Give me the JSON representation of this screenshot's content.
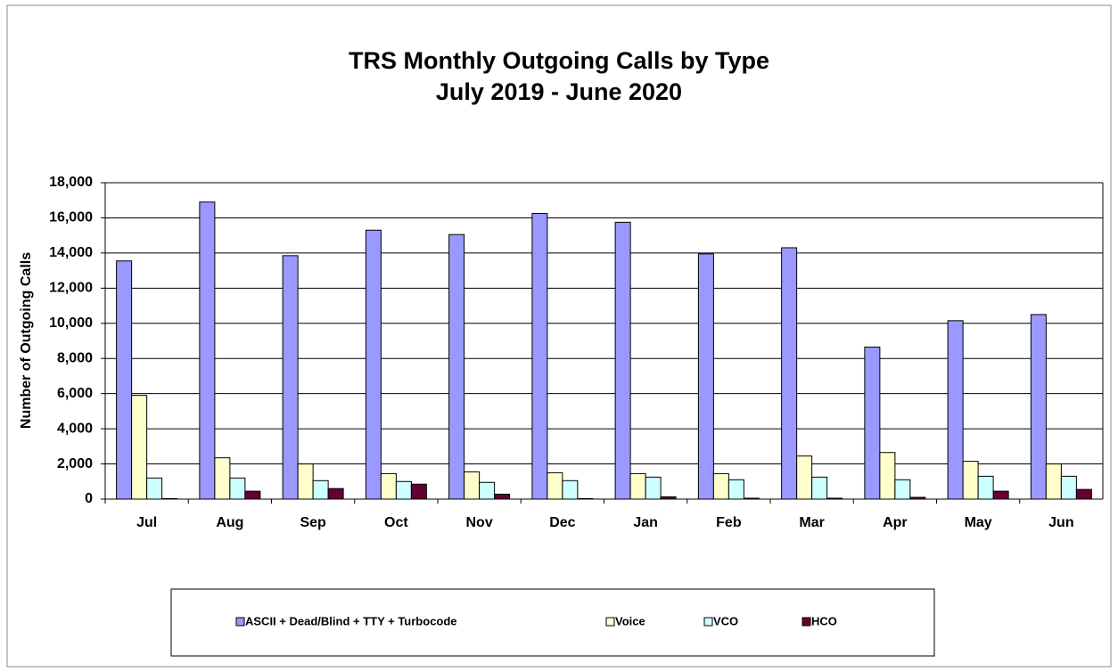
{
  "chart_data": {
    "type": "bar",
    "title": "TRS Monthly Outgoing Calls by Type",
    "subtitle": "July 2019 - June 2020",
    "y_label": "Number of Outgoing Calls",
    "categories": [
      "Jul",
      "Aug",
      "Sep",
      "Oct",
      "Nov",
      "Dec",
      "Jan",
      "Feb",
      "Mar",
      "Apr",
      "May",
      "Jun"
    ],
    "series": [
      {
        "name": "ASCII + Dead/Blind + TTY + Turbocode",
        "color": "#9999ff",
        "values": [
          13550,
          16900,
          13850,
          15300,
          15050,
          16250,
          15750,
          13950,
          14300,
          8650,
          10150,
          10500
        ]
      },
      {
        "name": "Voice",
        "color": "#ffffcc",
        "values": [
          5900,
          2350,
          2000,
          1450,
          1550,
          1500,
          1450,
          1450,
          2450,
          2650,
          2150,
          2000
        ]
      },
      {
        "name": "VCO",
        "color": "#ccffff",
        "values": [
          1200,
          1200,
          1050,
          1000,
          950,
          1050,
          1250,
          1100,
          1250,
          1100,
          1300,
          1300
        ]
      },
      {
        "name": "HCO",
        "color": "#660033",
        "values": [
          30,
          450,
          600,
          850,
          280,
          30,
          130,
          50,
          50,
          100,
          450,
          550
        ]
      }
    ],
    "ylim": [
      0,
      18000
    ],
    "yticks": [
      0,
      {
        "value": 2000,
        "label": "2,000"
      },
      {
        "value": 4000,
        "label": "4,000"
      },
      {
        "value": 6000,
        "label": "6,000"
      },
      {
        "value": 8000,
        "label": "8,000"
      },
      {
        "value": 10000,
        "label": "10,000"
      },
      {
        "value": 12000,
        "label": "12,000"
      },
      {
        "value": 14000,
        "label": "14,000"
      },
      {
        "value": 16000,
        "label": "16,000"
      },
      {
        "value": 18000,
        "label": "18,000"
      }
    ],
    "grid": true,
    "legend": "bottom"
  }
}
